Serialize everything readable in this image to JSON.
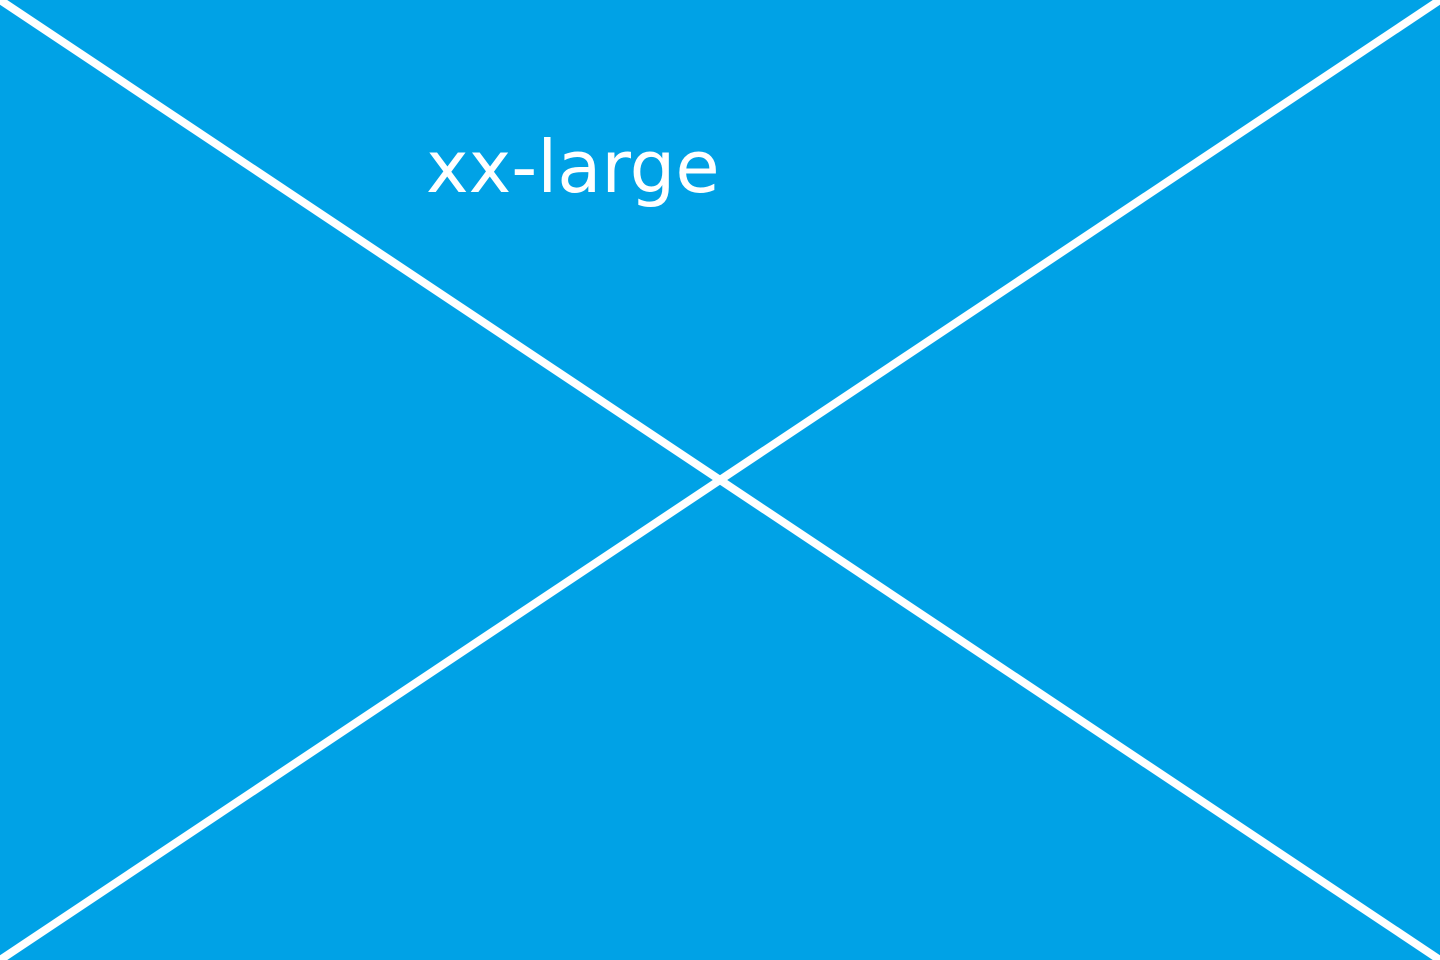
{
  "placeholder": {
    "size_label": "xx-large",
    "background_color": "#00a2e6",
    "line_color": "#ffffff"
  }
}
